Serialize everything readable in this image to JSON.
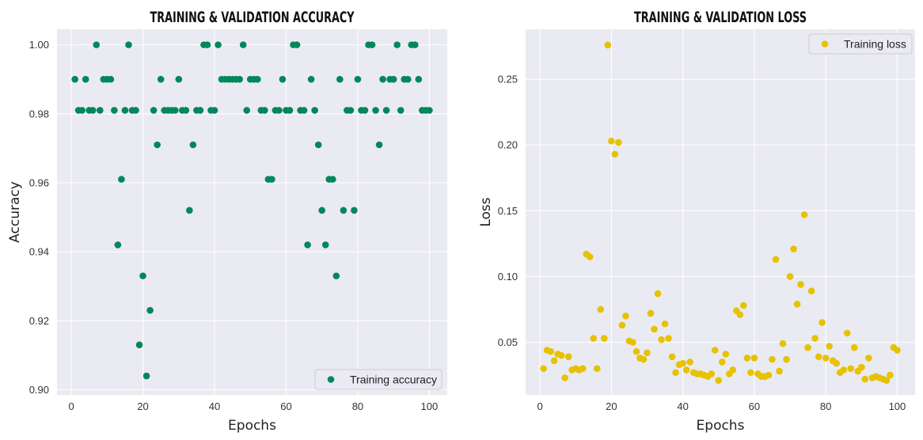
{
  "chart_data": [
    {
      "type": "scatter",
      "title": "TRAINING & VALIDATION ACCURACY",
      "xlabel": "Epochs",
      "ylabel": "Accuracy",
      "xlim": [
        -4,
        105
      ],
      "ylim": [
        0.8985,
        1.0045
      ],
      "xticks": [
        0,
        20,
        40,
        60,
        80,
        100
      ],
      "yticks": [
        0.9,
        0.92,
        0.94,
        0.96,
        0.98,
        1.0
      ],
      "ytick_labels": [
        "0.90",
        "0.92",
        "0.94",
        "0.96",
        "0.98",
        "1.00"
      ],
      "grid": true,
      "legend_position": "bottom-right",
      "series": [
        {
          "name": "Training accuracy",
          "color": "#00875a",
          "x": [
            1,
            2,
            3,
            4,
            5,
            6,
            7,
            8,
            9,
            10,
            11,
            12,
            13,
            14,
            15,
            16,
            17,
            18,
            19,
            20,
            21,
            22,
            23,
            24,
            25,
            26,
            27,
            28,
            29,
            30,
            31,
            32,
            33,
            34,
            35,
            36,
            37,
            38,
            39,
            40,
            41,
            42,
            43,
            44,
            45,
            46,
            47,
            48,
            49,
            50,
            51,
            52,
            53,
            54,
            55,
            56,
            57,
            58,
            59,
            60,
            61,
            62,
            63,
            64,
            65,
            66,
            67,
            68,
            69,
            70,
            71,
            72,
            73,
            74,
            75,
            76,
            77,
            78,
            79,
            80,
            81,
            82,
            83,
            84,
            85,
            86,
            87,
            88,
            89,
            90,
            91,
            92,
            93,
            94,
            95,
            96,
            97,
            98,
            99,
            100
          ],
          "y": [
            0.99,
            0.981,
            0.981,
            0.99,
            0.981,
            0.981,
            1.0,
            0.981,
            0.99,
            0.99,
            0.99,
            0.981,
            0.942,
            0.961,
            0.981,
            1.0,
            0.981,
            0.981,
            0.913,
            0.933,
            0.904,
            0.923,
            0.981,
            0.971,
            0.99,
            0.981,
            0.981,
            0.981,
            0.981,
            0.99,
            0.981,
            0.981,
            0.952,
            0.971,
            0.981,
            0.981,
            1.0,
            1.0,
            0.981,
            0.981,
            1.0,
            0.99,
            0.99,
            0.99,
            0.99,
            0.99,
            0.99,
            1.0,
            0.981,
            0.99,
            0.99,
            0.99,
            0.981,
            0.981,
            0.961,
            0.961,
            0.981,
            0.981,
            0.99,
            0.981,
            0.981,
            1.0,
            1.0,
            0.981,
            0.981,
            0.942,
            0.99,
            0.981,
            0.971,
            0.952,
            0.942,
            0.961,
            0.961,
            0.933,
            0.99,
            0.952,
            0.981,
            0.981,
            0.952,
            0.99,
            0.981,
            0.981,
            1.0,
            1.0,
            0.981,
            0.971,
            0.99,
            0.981,
            0.99,
            0.99,
            1.0,
            0.981,
            0.99,
            0.99,
            1.0,
            1.0,
            0.99,
            0.981,
            0.981,
            0.981
          ]
        }
      ]
    },
    {
      "type": "scatter",
      "title": "TRAINING & VALIDATION LOSS",
      "xlabel": "Epochs",
      "ylabel": "Loss",
      "xlim": [
        -4,
        105
      ],
      "ylim": [
        0.01,
        0.288
      ],
      "xticks": [
        0,
        20,
        40,
        60,
        80,
        100
      ],
      "yticks": [
        0.05,
        0.1,
        0.15,
        0.2,
        0.25
      ],
      "ytick_labels": [
        "0.05",
        "0.10",
        "0.15",
        "0.20",
        "0.25"
      ],
      "grid": true,
      "legend_position": "top-right",
      "series": [
        {
          "name": "Training loss",
          "color": "#e6c200",
          "x": [
            1,
            2,
            3,
            4,
            5,
            6,
            7,
            8,
            9,
            10,
            11,
            12,
            13,
            14,
            15,
            16,
            17,
            18,
            19,
            20,
            21,
            22,
            23,
            24,
            25,
            26,
            27,
            28,
            29,
            30,
            31,
            32,
            33,
            34,
            35,
            36,
            37,
            38,
            39,
            40,
            41,
            42,
            43,
            44,
            45,
            46,
            47,
            48,
            49,
            50,
            51,
            52,
            53,
            54,
            55,
            56,
            57,
            58,
            59,
            60,
            61,
            62,
            63,
            64,
            65,
            66,
            67,
            68,
            69,
            70,
            71,
            72,
            73,
            74,
            75,
            76,
            77,
            78,
            79,
            80,
            81,
            82,
            83,
            84,
            85,
            86,
            87,
            88,
            89,
            90,
            91,
            92,
            93,
            94,
            95,
            96,
            97,
            98,
            99,
            100
          ],
          "y": [
            0.03,
            0.044,
            0.043,
            0.036,
            0.041,
            0.04,
            0.023,
            0.039,
            0.029,
            0.03,
            0.029,
            0.03,
            0.117,
            0.115,
            0.053,
            0.03,
            0.075,
            0.053,
            0.276,
            0.203,
            0.193,
            0.202,
            0.063,
            0.07,
            0.051,
            0.05,
            0.043,
            0.038,
            0.037,
            0.042,
            0.072,
            0.06,
            0.087,
            0.052,
            0.064,
            0.053,
            0.039,
            0.027,
            0.033,
            0.034,
            0.029,
            0.035,
            0.027,
            0.026,
            0.026,
            0.025,
            0.024,
            0.026,
            0.044,
            0.021,
            0.035,
            0.041,
            0.026,
            0.029,
            0.074,
            0.071,
            0.078,
            0.038,
            0.027,
            0.038,
            0.026,
            0.024,
            0.024,
            0.025,
            0.037,
            0.113,
            0.028,
            0.049,
            0.037,
            0.1,
            0.121,
            0.079,
            0.094,
            0.147,
            0.046,
            0.089,
            0.053,
            0.039,
            0.065,
            0.038,
            0.047,
            0.036,
            0.034,
            0.027,
            0.029,
            0.057,
            0.03,
            0.046,
            0.028,
            0.031,
            0.022,
            0.038,
            0.023,
            0.024,
            0.023,
            0.022,
            0.021,
            0.025,
            0.046,
            0.044
          ]
        }
      ]
    }
  ]
}
